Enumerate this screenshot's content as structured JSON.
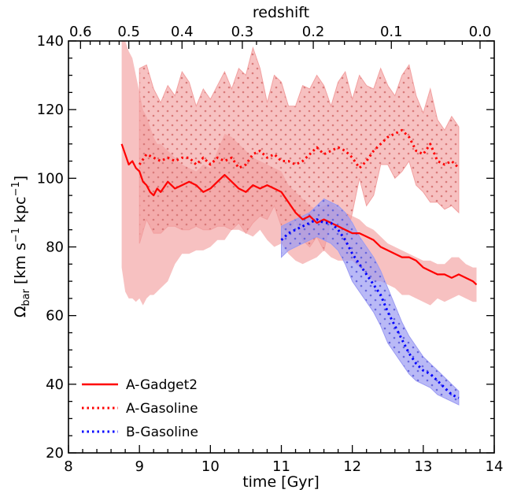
{
  "chart_data": {
    "type": "line",
    "xlabel": "time [Gyr]",
    "ylabel_main": "Ω",
    "ylabel_sub": "bar",
    "ylabel_unit_pre": " [km s",
    "ylabel_unit_mid": " kpc",
    "ylabel_unit_post": "]",
    "ylabel_exp": "−1",
    "top_xlabel": "redshift",
    "xlim": [
      8,
      14
    ],
    "ylim": [
      20,
      140
    ],
    "x_ticks": [
      "8",
      "9",
      "10",
      "11",
      "12",
      "13",
      "14"
    ],
    "y_ticks": [
      "20",
      "40",
      "60",
      "80",
      "100",
      "120",
      "140"
    ],
    "top_ticks": [
      {
        "label": "0.6",
        "time": 8.17
      },
      {
        "label": "0.5",
        "time": 8.85
      },
      {
        "label": "0.4",
        "time": 9.6
      },
      {
        "label": "0.3",
        "time": 10.45
      },
      {
        "label": "0.2",
        "time": 11.45
      },
      {
        "label": "0.1",
        "time": 12.55
      },
      {
        "label": "0.0",
        "time": 13.8
      }
    ],
    "legend_position": "lower-left",
    "series": [
      {
        "name": "A-Gadget2",
        "style": "solid",
        "color": "#ff0000",
        "band_color": "#f2a0a0",
        "x": [
          8.75,
          8.8,
          8.85,
          8.9,
          8.95,
          9.0,
          9.05,
          9.1,
          9.15,
          9.2,
          9.25,
          9.3,
          9.4,
          9.5,
          9.6,
          9.7,
          9.8,
          9.9,
          10.0,
          10.1,
          10.2,
          10.3,
          10.4,
          10.5,
          10.6,
          10.7,
          10.8,
          10.9,
          11.0,
          11.1,
          11.2,
          11.3,
          11.4,
          11.5,
          11.6,
          11.7,
          11.8,
          11.9,
          12.0,
          12.1,
          12.2,
          12.3,
          12.4,
          12.5,
          12.6,
          12.7,
          12.8,
          12.9,
          13.0,
          13.1,
          13.2,
          13.3,
          13.4,
          13.5,
          13.6,
          13.7,
          13.75
        ],
        "y": [
          110,
          107,
          104,
          105,
          103,
          102,
          99,
          98,
          96,
          95,
          97,
          96,
          99,
          97,
          98,
          99,
          98,
          96,
          97,
          99,
          101,
          99,
          97,
          96,
          98,
          97,
          98,
          97,
          96,
          93,
          90,
          88,
          89,
          87,
          88,
          87,
          86,
          85,
          84,
          84,
          83,
          82,
          80,
          79,
          78,
          77,
          77,
          76,
          74,
          73,
          72,
          72,
          71,
          72,
          71,
          70,
          69
        ],
        "band_upper": [
          143,
          140,
          137,
          135,
          130,
          125,
          120,
          118,
          115,
          112,
          110,
          110,
          108,
          106,
          104,
          103,
          102,
          104,
          103,
          108,
          113,
          112,
          110,
          108,
          106,
          105,
          104,
          103,
          102,
          98,
          96,
          94,
          92,
          91,
          92,
          93,
          91,
          90,
          89,
          88,
          86,
          85,
          83,
          81,
          80,
          79,
          78,
          77,
          76,
          76,
          75,
          75,
          77,
          77,
          75,
          74,
          74
        ],
        "band_lower": [
          74,
          67,
          65,
          65,
          64,
          65,
          63,
          65,
          66,
          66,
          67,
          68,
          70,
          75,
          78,
          78,
          79,
          79,
          80,
          82,
          82,
          85,
          85,
          84,
          83,
          85,
          82,
          80,
          81,
          78,
          76,
          75,
          76,
          77,
          79,
          77,
          76,
          76,
          76,
          74,
          72,
          70,
          70,
          69,
          68,
          66,
          66,
          65,
          64,
          63,
          65,
          64,
          65,
          66,
          65,
          64,
          64
        ]
      },
      {
        "name": "A-Gasoline",
        "style": "dotted",
        "color": "#ff0000",
        "band_color": "#f2a0a0",
        "x": [
          9.0,
          9.1,
          9.2,
          9.3,
          9.4,
          9.5,
          9.6,
          9.7,
          9.8,
          9.9,
          10.0,
          10.1,
          10.2,
          10.3,
          10.4,
          10.5,
          10.6,
          10.7,
          10.8,
          10.9,
          11.0,
          11.1,
          11.2,
          11.3,
          11.4,
          11.5,
          11.6,
          11.7,
          11.8,
          11.9,
          12.0,
          12.1,
          12.2,
          12.3,
          12.4,
          12.5,
          12.6,
          12.7,
          12.8,
          12.9,
          13.0,
          13.1,
          13.2,
          13.3,
          13.4,
          13.5
        ],
        "y": [
          104,
          107,
          106,
          105,
          106,
          105,
          106,
          106,
          104,
          106,
          104,
          106,
          105,
          106,
          103,
          104,
          107,
          108,
          106,
          107,
          105,
          105,
          104,
          105,
          107,
          109,
          107,
          108,
          109,
          108,
          106,
          103,
          105,
          108,
          110,
          112,
          113,
          114,
          112,
          108,
          107,
          110,
          105,
          104,
          105,
          103
        ],
        "band_upper": [
          132,
          133,
          126,
          122,
          127,
          124,
          131,
          128,
          121,
          126,
          123,
          127,
          131,
          126,
          132,
          130,
          138,
          132,
          122,
          130,
          128,
          121,
          121,
          127,
          126,
          130,
          127,
          121,
          128,
          131,
          123,
          130,
          127,
          126,
          132,
          127,
          124,
          130,
          133,
          124,
          119,
          126,
          117,
          114,
          118,
          115
        ],
        "band_lower": [
          81,
          88,
          84,
          84,
          86,
          86,
          85,
          85,
          86,
          85,
          85,
          86,
          86,
          85,
          87,
          84,
          87,
          89,
          88,
          92,
          86,
          84,
          88,
          82,
          80,
          83,
          79,
          88,
          87,
          81,
          90,
          100,
          92,
          95,
          104,
          104,
          100,
          102,
          105,
          98,
          96,
          93,
          93,
          91,
          92,
          90
        ]
      },
      {
        "name": "B-Gasoline",
        "style": "dotted",
        "color": "#0000ff",
        "band_color": "#9b9bf2",
        "x": [
          11.0,
          11.1,
          11.2,
          11.3,
          11.4,
          11.5,
          11.6,
          11.7,
          11.8,
          11.9,
          12.0,
          12.1,
          12.2,
          12.3,
          12.4,
          12.5,
          12.6,
          12.7,
          12.8,
          12.9,
          13.0,
          13.1,
          13.2,
          13.3,
          13.4,
          13.5
        ],
        "y": [
          82,
          84,
          85,
          86,
          87,
          88,
          87,
          87,
          85,
          82,
          78,
          75,
          72,
          69,
          66,
          61,
          57,
          53,
          49,
          46,
          44,
          43,
          41,
          39,
          37,
          36
        ],
        "band_upper": [
          86,
          87,
          88,
          89,
          90,
          92,
          94,
          93,
          92,
          90,
          87,
          83,
          80,
          77,
          73,
          68,
          63,
          58,
          54,
          51,
          48,
          46,
          44,
          42,
          40,
          38
        ],
        "band_lower": [
          77,
          79,
          80,
          81,
          82,
          83,
          82,
          81,
          79,
          75,
          70,
          67,
          64,
          61,
          57,
          52,
          49,
          46,
          43,
          41,
          40,
          39,
          37,
          36,
          35,
          34
        ]
      }
    ]
  }
}
